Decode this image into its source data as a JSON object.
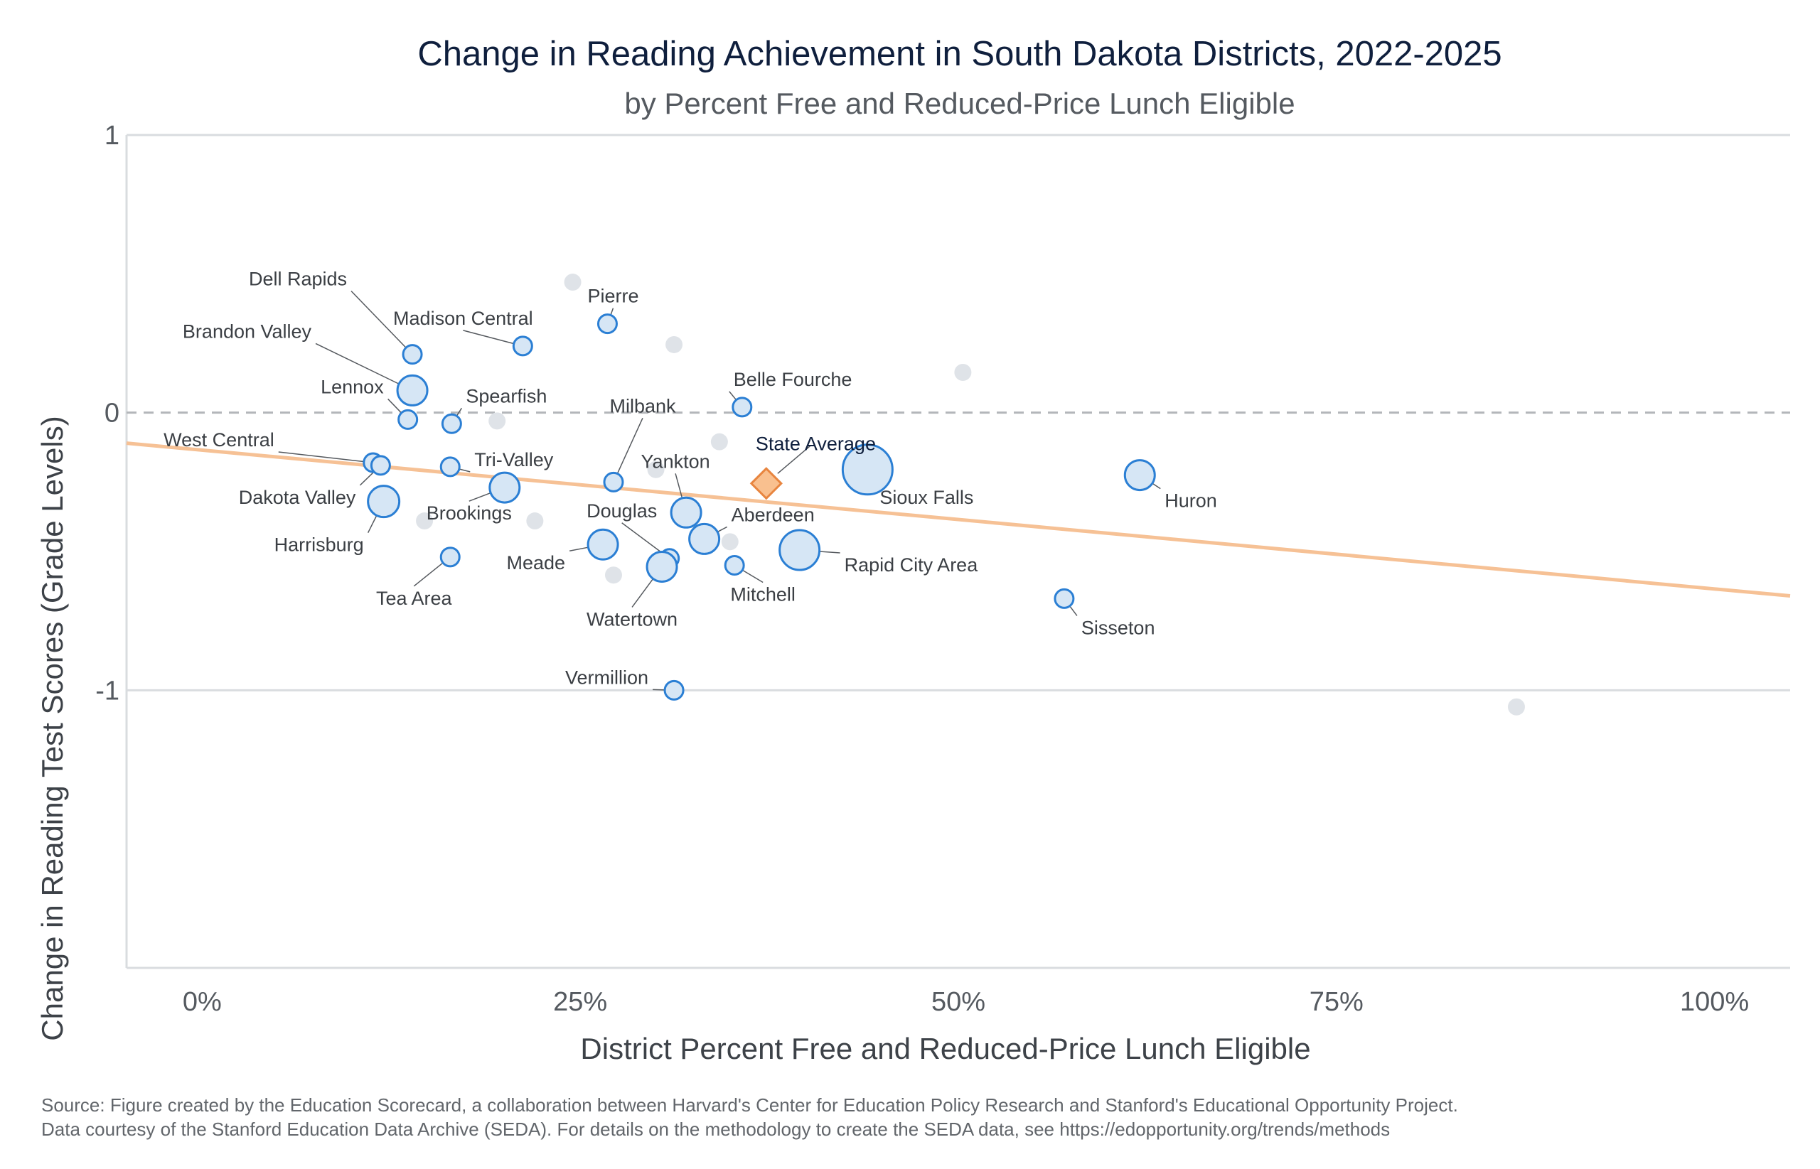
{
  "chart_data": {
    "type": "scatter",
    "title": "Change in Reading Achievement in South Dakota Districts, 2022-2025",
    "subtitle": "by Percent Free and Reduced-Price Lunch Eligible",
    "xlabel": "District Percent Free and Reduced-Price Lunch Eligible",
    "ylabel": "Change in Reading Test Scores (Grade Levels)",
    "xlim": [
      -0.05,
      1.05
    ],
    "ylim": [
      -2.0,
      1.0
    ],
    "x_ticks": [
      {
        "value": 0.0,
        "label": "0%"
      },
      {
        "value": 0.25,
        "label": "25%"
      },
      {
        "value": 0.5,
        "label": "50%"
      },
      {
        "value": 0.75,
        "label": "75%"
      },
      {
        "value": 1.0,
        "label": "100%"
      }
    ],
    "y_ticks": [
      {
        "value": 1,
        "label": "1"
      },
      {
        "value": 0,
        "label": "0"
      },
      {
        "value": -1,
        "label": "-1"
      }
    ],
    "reference_line_y": 0,
    "trend_line": {
      "color": "#f6c195",
      "points": [
        [
          -0.05,
          -0.11
        ],
        [
          1.05,
          -0.66
        ]
      ]
    },
    "labeled_districts": [
      {
        "name": "Dell Rapids",
        "x": 0.139,
        "y": 0.21,
        "size": "small"
      },
      {
        "name": "Brandon Valley",
        "x": 0.139,
        "y": 0.08,
        "size": "medium"
      },
      {
        "name": "Lennox",
        "x": 0.136,
        "y": -0.025,
        "size": "small"
      },
      {
        "name": "West Central",
        "x": 0.113,
        "y": -0.18,
        "size": "small"
      },
      {
        "name": "Dakota Valley",
        "x": 0.118,
        "y": -0.19,
        "size": "small"
      },
      {
        "name": "Harrisburg",
        "x": 0.12,
        "y": -0.32,
        "size": "medium"
      },
      {
        "name": "Tea Area",
        "x": 0.164,
        "y": -0.52,
        "size": "small"
      },
      {
        "name": "Spearfish",
        "x": 0.165,
        "y": -0.04,
        "size": "small"
      },
      {
        "name": "Tri-Valley",
        "x": 0.164,
        "y": -0.195,
        "size": "small"
      },
      {
        "name": "Brookings",
        "x": 0.2,
        "y": -0.27,
        "size": "medium"
      },
      {
        "name": "Madison Central",
        "x": 0.212,
        "y": 0.24,
        "size": "small"
      },
      {
        "name": "Pierre",
        "x": 0.268,
        "y": 0.32,
        "size": "small"
      },
      {
        "name": "Milbank",
        "x": 0.272,
        "y": -0.25,
        "size": "small"
      },
      {
        "name": "Meade",
        "x": 0.265,
        "y": -0.475,
        "size": "medium"
      },
      {
        "name": "Douglas",
        "x": 0.309,
        "y": -0.525,
        "size": "small"
      },
      {
        "name": "Watertown",
        "x": 0.304,
        "y": -0.555,
        "size": "medium"
      },
      {
        "name": "Vermillion",
        "x": 0.312,
        "y": -1.0,
        "size": "small"
      },
      {
        "name": "Yankton",
        "x": 0.32,
        "y": -0.36,
        "size": "medium"
      },
      {
        "name": "Aberdeen",
        "x": 0.332,
        "y": -0.455,
        "size": "medium"
      },
      {
        "name": "Mitchell",
        "x": 0.352,
        "y": -0.55,
        "size": "small"
      },
      {
        "name": "Belle Fourche",
        "x": 0.357,
        "y": 0.02,
        "size": "small"
      },
      {
        "name": "Rapid City Area",
        "x": 0.395,
        "y": -0.495,
        "size": "large"
      },
      {
        "name": "Sioux Falls",
        "x": 0.44,
        "y": -0.205,
        "size": "large"
      },
      {
        "name": "Huron",
        "x": 0.62,
        "y": -0.225,
        "size": "medium"
      },
      {
        "name": "Sisseton",
        "x": 0.57,
        "y": -0.67,
        "size": "small"
      }
    ],
    "state_average": {
      "name": "State Average",
      "x": 0.373,
      "y": -0.255
    },
    "unlabeled_districts": [
      {
        "x": 0.245,
        "y": 0.47
      },
      {
        "x": 0.312,
        "y": 0.245
      },
      {
        "x": 0.503,
        "y": 0.145
      },
      {
        "x": 0.195,
        "y": -0.03
      },
      {
        "x": 0.342,
        "y": -0.105
      },
      {
        "x": 0.3,
        "y": -0.205
      },
      {
        "x": 0.22,
        "y": -0.39
      },
      {
        "x": 0.147,
        "y": -0.39
      },
      {
        "x": 0.349,
        "y": -0.465
      },
      {
        "x": 0.272,
        "y": -0.585
      },
      {
        "x": 0.869,
        "y": -1.06
      }
    ],
    "colors": {
      "district_fill": "#d6e6f5",
      "district_stroke": "#2b7fd4",
      "unlabeled_fill": "#dfe3e8",
      "state_fill": "#f9c08f",
      "state_stroke": "#e8853f",
      "trend": "#f6c195",
      "grid": "#d9dcdf"
    }
  },
  "source_note": {
    "line1": "Source: Figure created by the Education Scorecard, a collaboration between Harvard's Center for Education Policy Research and Stanford's Educational Opportunity Project.",
    "line2": "Data courtesy of the Stanford Education Data Archive (SEDA). For details on the methodology to create the SEDA data, see https://edopportunity.org/trends/methods"
  }
}
